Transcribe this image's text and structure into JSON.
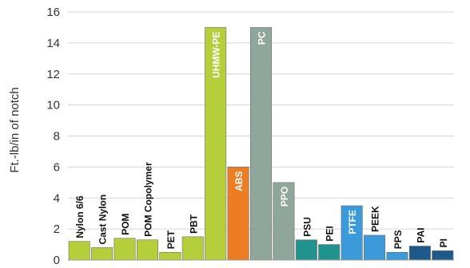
{
  "chart_data": {
    "type": "bar",
    "ylabel": "Ft.-lb/in of notch",
    "ylim": [
      0,
      16
    ],
    "yticks": [
      "0",
      "2",
      "4",
      "6",
      "8",
      "10",
      "12",
      "14",
      "16"
    ],
    "grid": true,
    "bar_labels_in_bar": [
      "UHMW-PE",
      "ABS",
      "PC",
      "PPO",
      "PTFE"
    ],
    "categories": [
      "Nylon 6/6",
      "Cast Nylon",
      "POM",
      "POM Copolymer",
      "PET",
      "PBT",
      "UHMW-PE",
      "ABS",
      "PC",
      "PPO",
      "PSU",
      "PEI",
      "PTFE",
      "PEEK",
      "PPS",
      "PAI",
      "PI"
    ],
    "values": [
      1.2,
      0.8,
      1.4,
      1.3,
      0.5,
      1.5,
      15.0,
      6.0,
      15.0,
      5.0,
      1.3,
      1.0,
      3.5,
      1.6,
      0.5,
      0.9,
      0.6
    ],
    "colors": [
      "#b5cf3b",
      "#b5cf3b",
      "#b5cf3b",
      "#b5cf3b",
      "#b5cf3b",
      "#b5cf3b",
      "#b5cf3b",
      "#ed7d22",
      "#8fa79b",
      "#8fa79b",
      "#21938f",
      "#21938f",
      "#3b9ad9",
      "#3b9ad9",
      "#3b9ad9",
      "#1d5a8a",
      "#1d5a8a"
    ]
  }
}
